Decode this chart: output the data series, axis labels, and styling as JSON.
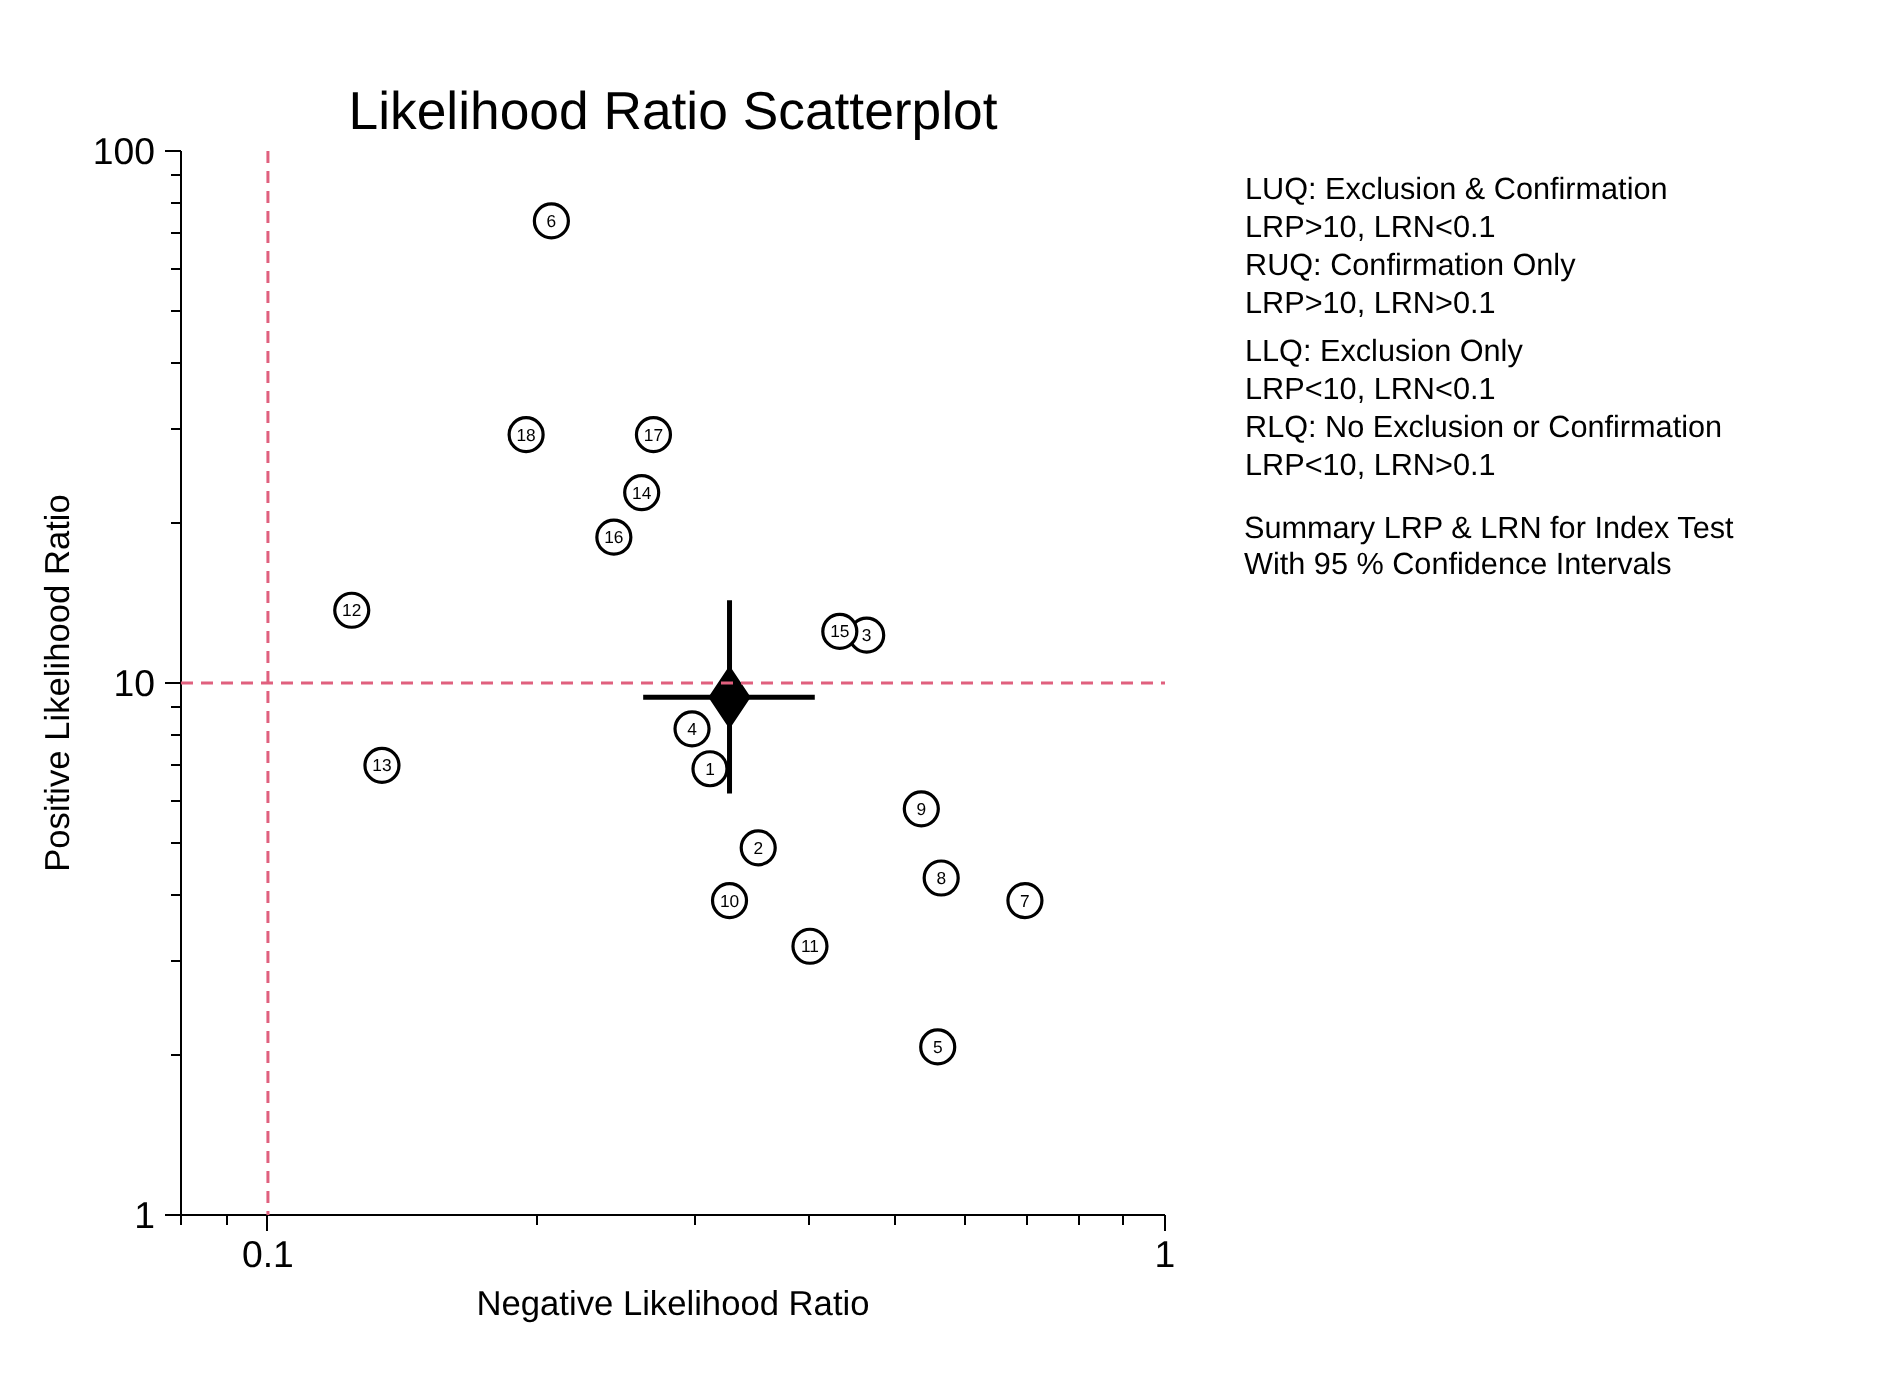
{
  "chart_data": {
    "type": "scatter",
    "title": "Likelihood Ratio Scatterplot",
    "xlabel": "Negative Likelihood Ratio",
    "ylabel": "Positive Likelihood Ratio",
    "log": "xy",
    "xlim": [
      0.08,
      1
    ],
    "ylim": [
      1,
      100
    ],
    "xticks": [
      0.1,
      1
    ],
    "yticks": [
      1,
      10,
      100
    ],
    "grid": false,
    "legend": "right",
    "series": [
      {
        "type": "scatter",
        "marker": "circle",
        "color": "#000000",
        "x": [
          0.311,
          0.352,
          0.465,
          0.297,
          0.558,
          0.207,
          0.698,
          0.563,
          0.535,
          0.327,
          0.402,
          0.124,
          0.134,
          0.261,
          0.434,
          0.243,
          0.269,
          0.194
        ],
        "values": [
          6.9,
          4.9,
          12.3,
          8.2,
          2.07,
          73.9,
          3.9,
          4.3,
          5.8,
          3.9,
          3.2,
          13.7,
          7.0,
          22.8,
          12.5,
          18.8,
          29.3,
          29.3
        ]
      },
      {
        "type": "scatter",
        "marker": "diamond",
        "color": "#000000",
        "name": "Summary LRP & LRN for Index Test\nWith 95 % Confidence Intervals",
        "x": [
          0.327
        ],
        "values": [
          9.4
        ],
        "errors": [
          [
            6.2,
            14.3
          ]
        ],
        "xerrors": [
          [
            0.262,
            0.407
          ]
        ]
      }
    ],
    "ref_lines": [
      {
        "axis": "x",
        "value": 0.1,
        "color": "#e0607e",
        "line_style": "dashed"
      },
      {
        "axis": "y",
        "value": 10,
        "color": "#e0607e",
        "line_style": "dashed"
      }
    ],
    "annotations": [
      "LUQ: Exclusion & Confirmation",
      "LRP>10, LRN<0.1",
      "RUQ: Confirmation Only",
      "LRP>10, LRN>0.1",
      "LLQ: Exclusion Only",
      "LRP<10, LRN<0.1",
      "RLQ: No Exclusion or Confirmation",
      "LRP<10, LRN>0.1",
      {
        "text": "1",
        "x": 0.311,
        "y": 6.9
      },
      {
        "text": "2",
        "x": 0.352,
        "y": 4.9
      },
      {
        "text": "3",
        "x": 0.465,
        "y": 12.3
      },
      {
        "text": "4",
        "x": 0.297,
        "y": 8.2
      },
      {
        "text": "5",
        "x": 0.558,
        "y": 2.07
      },
      {
        "text": "6",
        "x": 0.207,
        "y": 73.9
      },
      {
        "text": "7",
        "x": 0.698,
        "y": 3.9
      },
      {
        "text": "8",
        "x": 0.563,
        "y": 4.3
      },
      {
        "text": "9",
        "x": 0.535,
        "y": 5.8
      },
      {
        "text": "10",
        "x": 0.327,
        "y": 3.9
      },
      {
        "text": "11",
        "x": 0.402,
        "y": 3.2
      },
      {
        "text": "12",
        "x": 0.124,
        "y": 13.7
      },
      {
        "text": "13",
        "x": 0.134,
        "y": 7.0
      },
      {
        "text": "14",
        "x": 0.261,
        "y": 22.8
      },
      {
        "text": "15",
        "x": 0.434,
        "y": 12.5
      },
      {
        "text": "16",
        "x": 0.243,
        "y": 18.8
      },
      {
        "text": "17",
        "x": 0.269,
        "y": 29.3
      },
      {
        "text": "18",
        "x": 0.194,
        "y": 29.3
      }
    ]
  }
}
